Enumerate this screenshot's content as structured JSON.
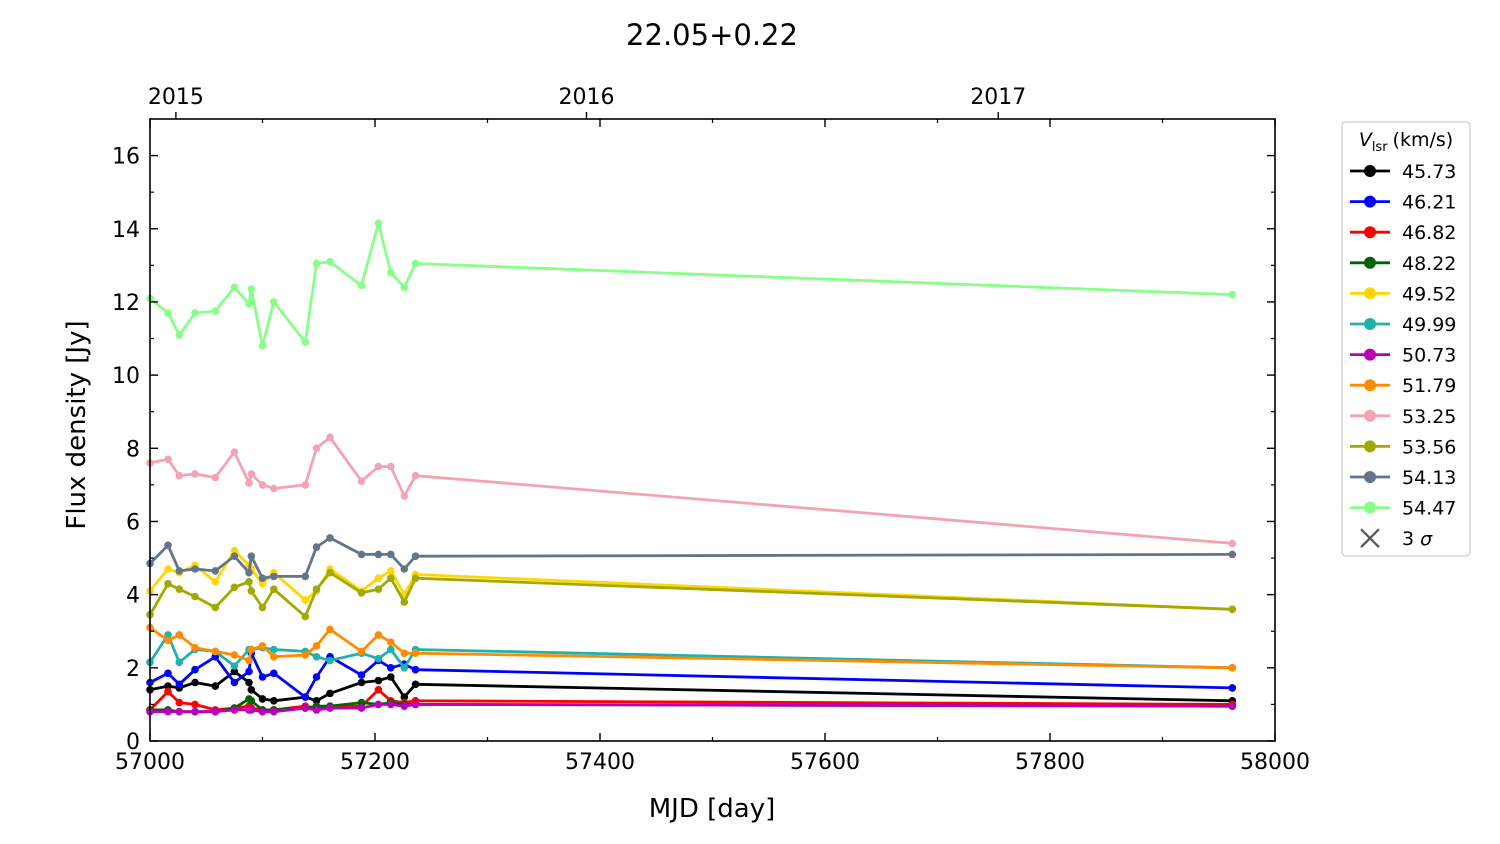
{
  "chart_data": {
    "type": "line",
    "title": "22.05+0.22",
    "xlabel": "MJD [day]",
    "ylabel": "Flux density [Jy]",
    "xlim": [
      57000,
      58000
    ],
    "ylim": [
      0,
      17
    ],
    "x_ticks": [
      57000,
      57200,
      57400,
      57600,
      57800,
      58000
    ],
    "x_tick_labels": [
      "57000",
      "57200",
      "57400",
      "57600",
      "57800",
      "58000"
    ],
    "y_ticks": [
      0,
      2,
      4,
      6,
      8,
      10,
      12,
      14,
      16
    ],
    "y_tick_labels": [
      "0",
      "2",
      "4",
      "6",
      "8",
      "10",
      "12",
      "14",
      "16"
    ],
    "top_axis_ticks": [
      57023,
      57388,
      57754
    ],
    "top_axis_labels": [
      "2015",
      "2016",
      "2017"
    ],
    "grid": false,
    "legend": {
      "placement": "outside-right",
      "title_main": "V",
      "title_sub": "lsr",
      "title_unit": "(km/s)",
      "upper_limit_label": "3 σ"
    },
    "x": [
      57000,
      57016,
      57026,
      57040,
      57058,
      57075,
      57088,
      57090,
      57100,
      57110,
      57138,
      57148,
      57160,
      57188,
      57203,
      57214,
      57226,
      57236,
      57962
    ],
    "series": [
      {
        "name": "45.73",
        "color": "#000000",
        "values": [
          1.4,
          1.5,
          1.45,
          1.6,
          1.5,
          1.9,
          1.6,
          1.4,
          1.15,
          1.1,
          1.2,
          1.1,
          1.3,
          1.6,
          1.65,
          1.75,
          1.2,
          1.55,
          1.1
        ]
      },
      {
        "name": "46.21",
        "color": "#0000ff",
        "values": [
          1.6,
          1.85,
          1.55,
          1.95,
          2.3,
          1.6,
          1.9,
          2.4,
          1.75,
          1.85,
          1.2,
          1.75,
          2.3,
          1.8,
          2.2,
          2.0,
          2.1,
          1.95,
          1.45
        ]
      },
      {
        "name": "46.82",
        "color": "#ff0000",
        "values": [
          0.85,
          1.35,
          1.05,
          1.0,
          0.85,
          0.9,
          0.95,
          0.9,
          0.85,
          0.85,
          0.95,
          0.9,
          0.95,
          0.95,
          1.4,
          1.1,
          1.05,
          1.1,
          1.0
        ]
      },
      {
        "name": "48.22",
        "color": "#006400",
        "values": [
          0.85,
          0.85,
          0.8,
          0.8,
          0.8,
          0.9,
          1.15,
          1.1,
          0.85,
          0.85,
          0.9,
          0.95,
          0.95,
          1.05,
          1.0,
          1.05,
          1.0,
          1.0,
          0.95
        ]
      },
      {
        "name": "49.52",
        "color": "#ffd700",
        "values": [
          4.1,
          4.7,
          4.6,
          4.8,
          4.35,
          5.2,
          4.8,
          4.7,
          4.3,
          4.6,
          3.85,
          4.1,
          4.7,
          4.1,
          4.45,
          4.65,
          4.0,
          4.55,
          3.6
        ]
      },
      {
        "name": "49.99",
        "color": "#20b2aa",
        "values": [
          2.15,
          2.9,
          2.15,
          2.5,
          2.45,
          2.05,
          2.5,
          2.5,
          2.55,
          2.5,
          2.45,
          2.3,
          2.2,
          2.4,
          2.25,
          2.5,
          2.0,
          2.5,
          2.0
        ]
      },
      {
        "name": "50.73",
        "color": "#bb00bb",
        "values": [
          0.8,
          0.8,
          0.8,
          0.8,
          0.8,
          0.85,
          0.85,
          0.85,
          0.8,
          0.8,
          0.9,
          0.85,
          0.9,
          0.9,
          1.0,
          1.0,
          0.95,
          1.0,
          0.95
        ]
      },
      {
        "name": "51.79",
        "color": "#ff8c00",
        "values": [
          3.1,
          2.75,
          2.9,
          2.55,
          2.45,
          2.35,
          2.2,
          2.5,
          2.6,
          2.3,
          2.35,
          2.6,
          3.05,
          2.45,
          2.9,
          2.7,
          2.4,
          2.4,
          2.0
        ]
      },
      {
        "name": "53.25",
        "color": "#f4a3b4",
        "values": [
          7.6,
          7.7,
          7.25,
          7.3,
          7.2,
          7.9,
          7.05,
          7.3,
          7.0,
          6.9,
          7.0,
          8.0,
          8.3,
          7.1,
          7.5,
          7.5,
          6.7,
          7.25,
          5.4
        ]
      },
      {
        "name": "53.56",
        "color": "#a0aa00",
        "values": [
          3.45,
          4.3,
          4.15,
          3.95,
          3.65,
          4.2,
          4.35,
          4.1,
          3.65,
          4.15,
          3.4,
          4.15,
          4.6,
          4.05,
          4.15,
          4.45,
          3.8,
          4.45,
          3.6
        ]
      },
      {
        "name": "54.13",
        "color": "#64748b",
        "values": [
          4.85,
          5.35,
          4.65,
          4.7,
          4.65,
          5.05,
          4.6,
          5.05,
          4.45,
          4.5,
          4.5,
          5.3,
          5.55,
          5.1,
          5.1,
          5.1,
          4.7,
          5.05,
          5.1
        ]
      },
      {
        "name": "54.47",
        "color": "#88ff88",
        "values": [
          12.1,
          11.7,
          11.1,
          11.7,
          11.75,
          12.4,
          11.95,
          12.35,
          10.8,
          12.0,
          10.9,
          13.05,
          13.1,
          12.45,
          14.15,
          12.8,
          12.4,
          13.05,
          12.2
        ]
      }
    ]
  }
}
